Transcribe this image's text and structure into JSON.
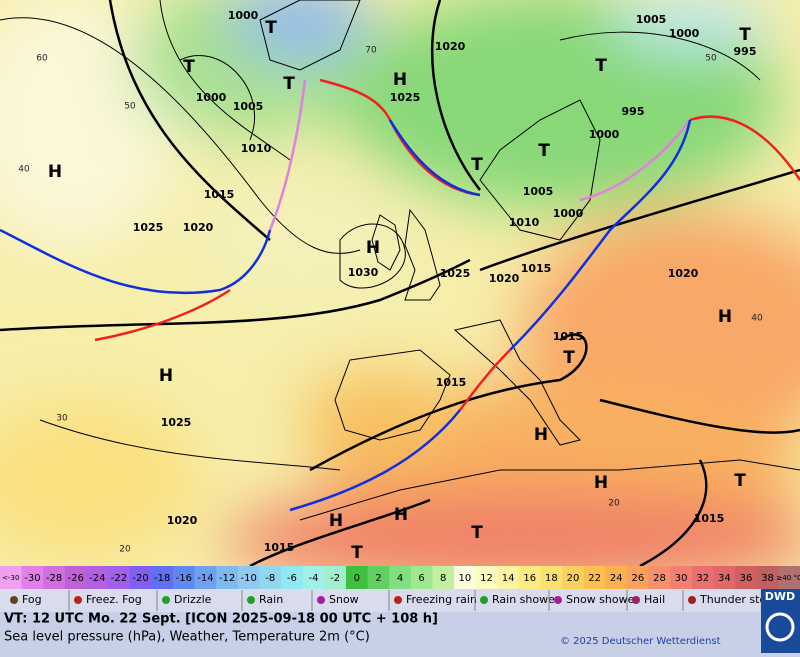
{
  "map": {
    "pressure_centers": [
      "H",
      "H",
      "H",
      "H",
      "H",
      "H",
      "H",
      "H",
      "H",
      "T",
      "T",
      "T",
      "T",
      "T",
      "T",
      "T",
      "T",
      "T",
      "T",
      "T"
    ],
    "isobar_labels": [
      "1000",
      "1000",
      "1005",
      "1010",
      "1015",
      "1025",
      "1020",
      "1030",
      "1025",
      "1020",
      "1015",
      "1010",
      "1005",
      "1000",
      "1000",
      "995",
      "995",
      "1000",
      "1005",
      "1020",
      "1025",
      "1020",
      "1015",
      "1015",
      "1025",
      "1020",
      "1015",
      "1015"
    ],
    "isotherm_labels": [
      "40",
      "30",
      "20",
      "40",
      "20",
      "50",
      "60",
      "70",
      "50"
    ]
  },
  "temperature_scale": [
    {
      "label": "<-30",
      "color": "#f0a0f0"
    },
    {
      "label": "-30",
      "color": "#e080e8"
    },
    {
      "label": "-28",
      "color": "#d070e0"
    },
    {
      "label": "-26",
      "color": "#c060d8"
    },
    {
      "label": "-24",
      "color": "#b060e0"
    },
    {
      "label": "-22",
      "color": "#a060e8"
    },
    {
      "label": "-20",
      "color": "#8060f0"
    },
    {
      "label": "-18",
      "color": "#6070f0"
    },
    {
      "label": "-16",
      "color": "#6088f0"
    },
    {
      "label": "-14",
      "color": "#70a0f0"
    },
    {
      "label": "-12",
      "color": "#80b8f0"
    },
    {
      "label": "-10",
      "color": "#90c8f0"
    },
    {
      "label": "-8",
      "color": "#90d8f0"
    },
    {
      "label": "-6",
      "color": "#90e8f0"
    },
    {
      "label": "-4",
      "color": "#a0f0e8"
    },
    {
      "label": "-2",
      "color": "#a0f0d0"
    },
    {
      "label": "0",
      "color": "#40c040"
    },
    {
      "label": "2",
      "color": "#60d060"
    },
    {
      "label": "4",
      "color": "#80e080"
    },
    {
      "label": "6",
      "color": "#a0e890"
    },
    {
      "label": "8",
      "color": "#c0f0a0"
    },
    {
      "label": "10",
      "color": "#fcfce0"
    },
    {
      "label": "12",
      "color": "#fcfcc0"
    },
    {
      "label": "14",
      "color": "#fcf4a0"
    },
    {
      "label": "16",
      "color": "#fcec80"
    },
    {
      "label": "18",
      "color": "#fce070"
    },
    {
      "label": "20",
      "color": "#fcd060"
    },
    {
      "label": "22",
      "color": "#fcc050"
    },
    {
      "label": "24",
      "color": "#fcb050"
    },
    {
      "label": "26",
      "color": "#fca060"
    },
    {
      "label": "28",
      "color": "#f89070"
    },
    {
      "label": "30",
      "color": "#f08070"
    },
    {
      "label": "32",
      "color": "#e87070"
    },
    {
      "label": "34",
      "color": "#e06868"
    },
    {
      "label": "36",
      "color": "#d06060"
    },
    {
      "label": "38",
      "color": "#c06060"
    },
    {
      "label": "≥40 °C",
      "color": "#b07070"
    }
  ],
  "weather_legend": [
    "Fog",
    "Freez. Fog",
    "Drizzle",
    "Rain",
    "Snow",
    "Freezing rain",
    "Rain shower",
    "Snow shower",
    "Hail",
    "Thunder storm"
  ],
  "footer": {
    "valid_time": "VT: 12 UTC Mo.  22 Sept. [ICON 2025-09-18  00 UTC + 108 h]",
    "description": "Sea level pressure (hPa), Weather, Temperature 2m (°C)",
    "copyright": "© 2025 Deutscher Wetterdienst",
    "logo": "DWD"
  }
}
